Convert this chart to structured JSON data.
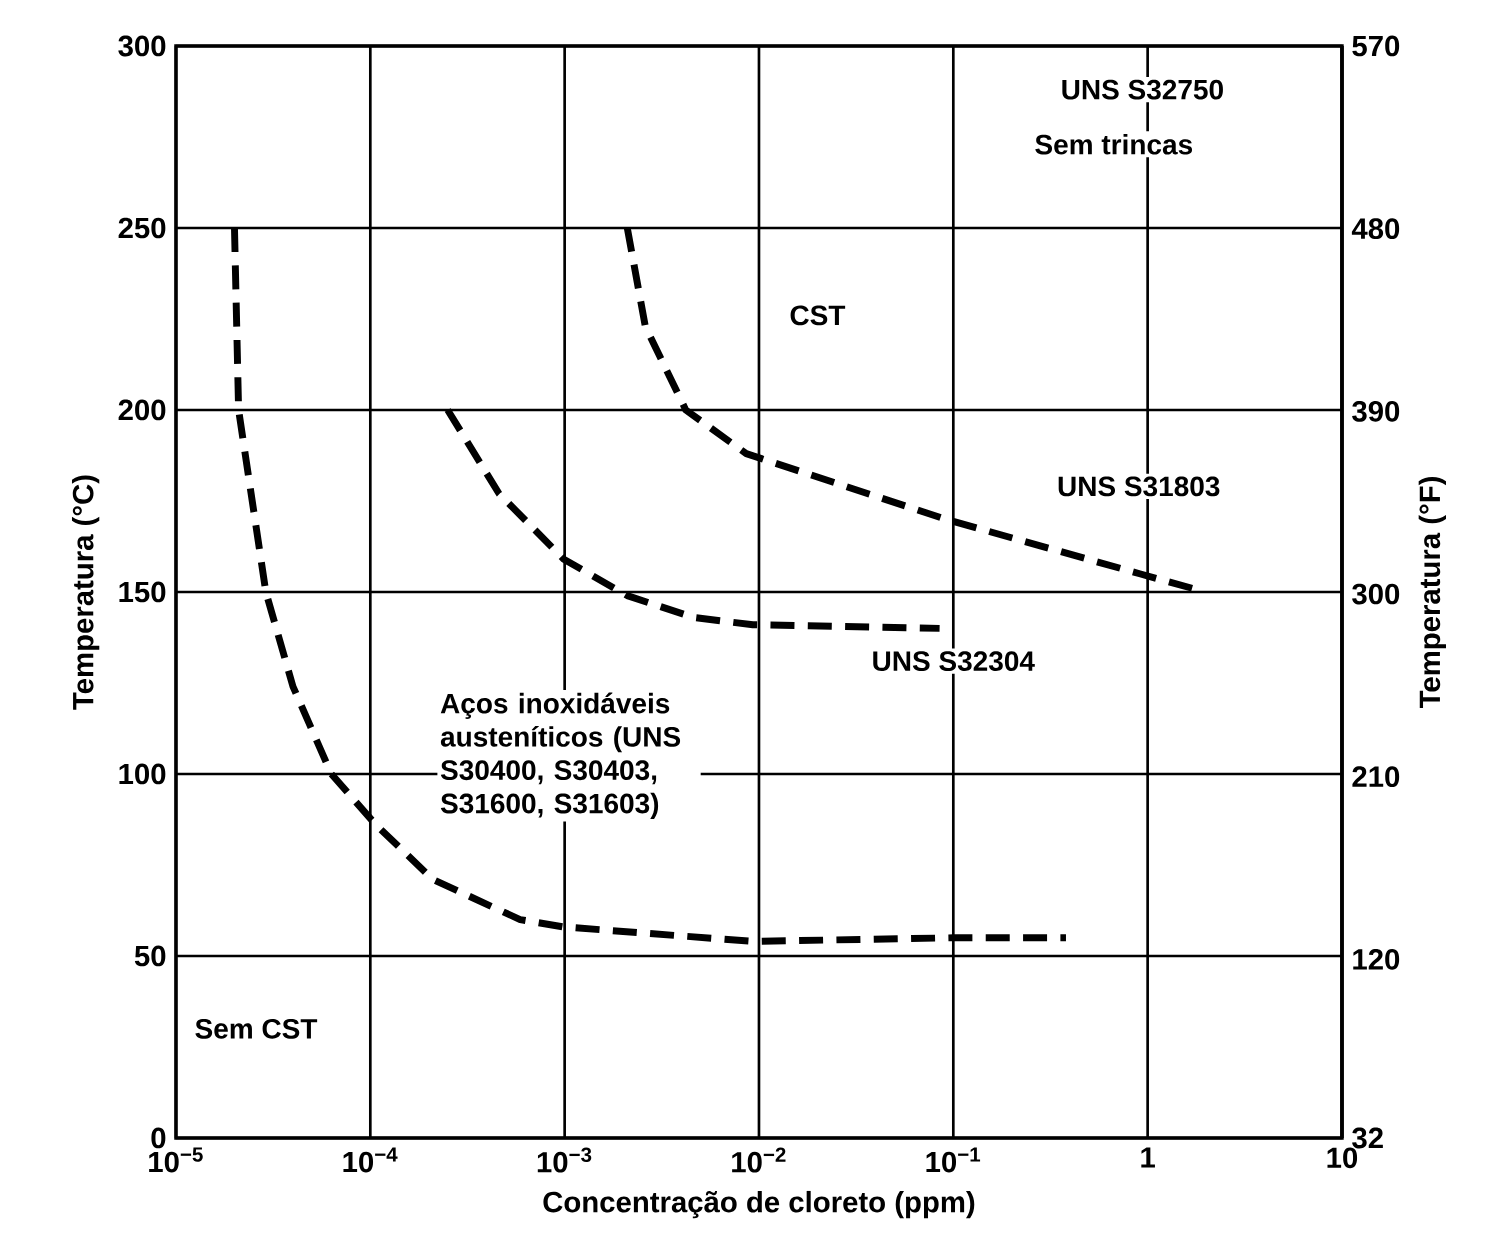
{
  "chart_data": {
    "type": "line",
    "xlabel": "Concentração de cloreto (ppm)",
    "ylabel": "Temperatura (°C)",
    "y2label": "Temperatura (°F)",
    "log": "x",
    "grid": true,
    "line_style": "dashed",
    "xlim": [
      1e-05,
      10
    ],
    "xticks": [
      {
        "value": 1e-05,
        "label": "10$^{−5}$"
      },
      {
        "value": 0.0001,
        "label": "10$^{−4}$"
      },
      {
        "value": 0.001,
        "label": "10$^{−3}$"
      },
      {
        "value": 0.01,
        "label": "10$^{−2}$"
      },
      {
        "value": 0.1,
        "label": "10$^{−1}$"
      },
      1,
      10
    ],
    "ylim": [
      0,
      300
    ],
    "yticks": [
      0,
      50,
      100,
      150,
      200,
      250,
      300
    ],
    "y2lim": [
      32,
      570
    ],
    "y2ticks": [
      32,
      120,
      210,
      300,
      390,
      480,
      570
    ],
    "series": [
      {
        "name": "Aços inoxidáveis austeníticos (UNS S30400, S30403, S31600, S31603)",
        "color": "#000000",
        "x": [
          2e-05,
          2.1e-05,
          2.9e-05,
          4e-05,
          6.3e-05,
          0.000107,
          0.00021,
          0.00059,
          0.00098,
          0.0093,
          0.1,
          0.38
        ],
        "values": [
          250,
          200,
          150,
          124,
          100,
          86,
          71,
          60,
          58,
          54,
          55,
          55
        ]
      },
      {
        "name": "UNS S32304",
        "color": "#000000",
        "x": [
          0.00025,
          0.00046,
          0.00099,
          0.0021,
          0.0046,
          0.0093,
          0.085
        ],
        "values": [
          200,
          177,
          159,
          149,
          143,
          141,
          140
        ]
      },
      {
        "name": "UNS S31803",
        "color": "#000000",
        "x": [
          0.0021,
          0.0026,
          0.0042,
          0.0086,
          0.091,
          0.91,
          1.7
        ],
        "values": [
          250,
          223,
          200,
          188,
          170,
          155,
          151
        ]
      }
    ],
    "annotations": [
      "UNS S32750",
      "Sem trincas",
      "CST",
      "Sem CST"
    ]
  }
}
